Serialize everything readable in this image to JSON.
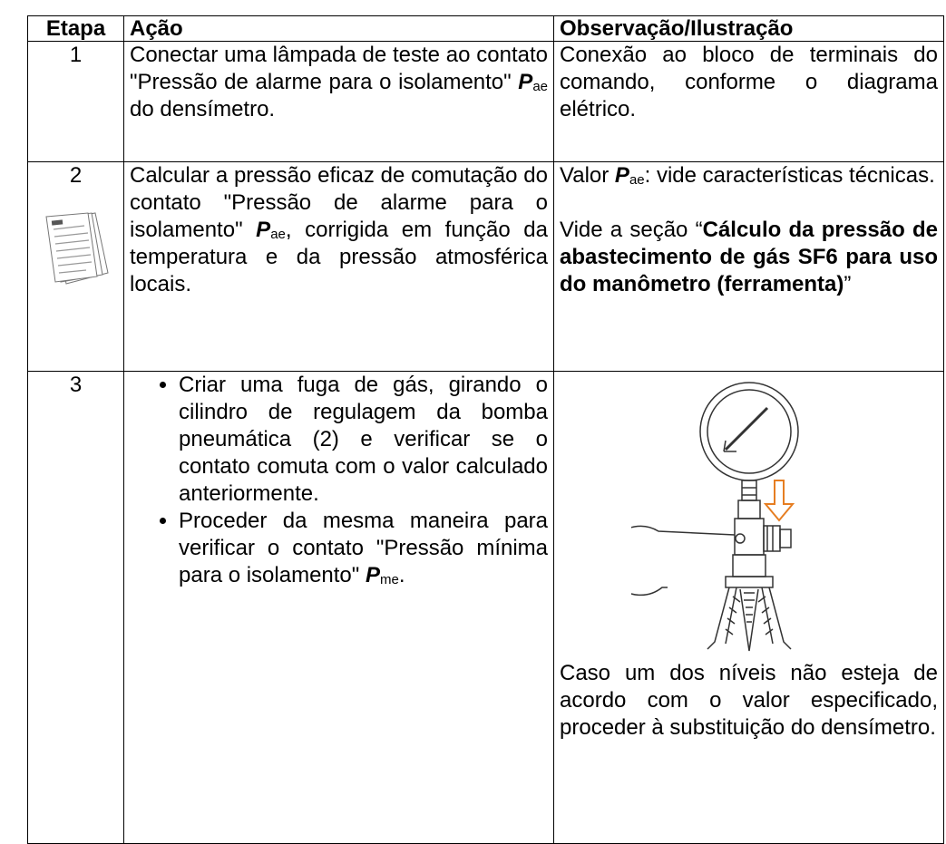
{
  "table": {
    "header": [
      "Etapa",
      "Ação",
      "Observação/Ilustração"
    ],
    "rows": [
      {
        "step": "1",
        "action": [
          [
            {
              "text": "Conectar uma lâmpada de teste ao contato \"Pressão de alarme para o isolamento\" "
            },
            {
              "symbol": "P",
              "sub": "ae"
            },
            {
              "text": " do densímetro."
            }
          ]
        ],
        "observation": [
          [
            {
              "text": "Conexão ao bloco de terminais do comando, conforme o diagrama elétrico."
            }
          ]
        ]
      },
      {
        "step": "2",
        "action": [
          [
            {
              "text": "Calcular a pressão eficaz de comutação do contato \"Pressão de alarme para o isolamento\" "
            },
            {
              "symbol": "P",
              "sub": "ae"
            },
            {
              "text": ", corrigida em função da temperatura e da pressão atmosférica locais."
            }
          ]
        ],
        "observation": [
          [
            {
              "text": "Valor "
            },
            {
              "symbol": "P",
              "sub": "ae"
            },
            {
              "text": ": vide características técnicas."
            }
          ],
          [
            {
              "text": "Vide a seção “"
            },
            {
              "bold": "Cálculo da pressão de abastecimento de gás SF6 para uso do manômetro (ferramenta)"
            },
            {
              "text": "”"
            }
          ]
        ]
      },
      {
        "step": "3",
        "bullets": [
          [
            {
              "text": "Criar uma fuga de gás, girando o cilindro de regulagem da bomba pneumática (2) e verificar se o contato comuta com o valor calculado anteriormente."
            }
          ],
          [
            {
              "text": "Proceder da mesma maneira para verificar o contato \"Pressão mínima para o isolamento\" "
            },
            {
              "symbol": "P",
              "sub": "me"
            },
            {
              "text": "."
            }
          ]
        ],
        "observation": [
          [
            {
              "text": "Caso um dos níveis não esteja de acordo com o valor especificado, proceder à substituição do densímetro."
            }
          ]
        ]
      }
    ]
  }
}
